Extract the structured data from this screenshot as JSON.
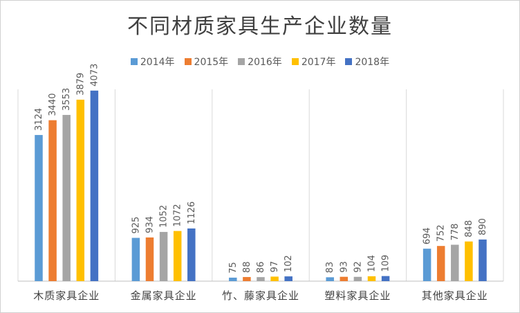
{
  "chart_data": {
    "type": "bar",
    "title": "不同材质家具生产企业数量",
    "categories": [
      "木质家具企业",
      "金属家具企业",
      "竹、藤家具企业",
      "塑料家具企业",
      "其他家具企业"
    ],
    "series": [
      {
        "name": "2014年",
        "color": "#5B9BD5",
        "values": [
          3124,
          925,
          75,
          83,
          694
        ]
      },
      {
        "name": "2015年",
        "color": "#ED7D31",
        "values": [
          3440,
          934,
          88,
          93,
          752
        ]
      },
      {
        "name": "2016年",
        "color": "#A5A5A5",
        "values": [
          3553,
          1052,
          86,
          92,
          778
        ]
      },
      {
        "name": "2017年",
        "color": "#FFC000",
        "values": [
          3879,
          1072,
          97,
          104,
          848
        ]
      },
      {
        "name": "2018年",
        "color": "#4472C4",
        "values": [
          4073,
          1126,
          102,
          109,
          890
        ]
      }
    ],
    "ylim": [
      0,
      4100
    ],
    "legend_position": "top",
    "data_labels": "rotated-vertical"
  }
}
